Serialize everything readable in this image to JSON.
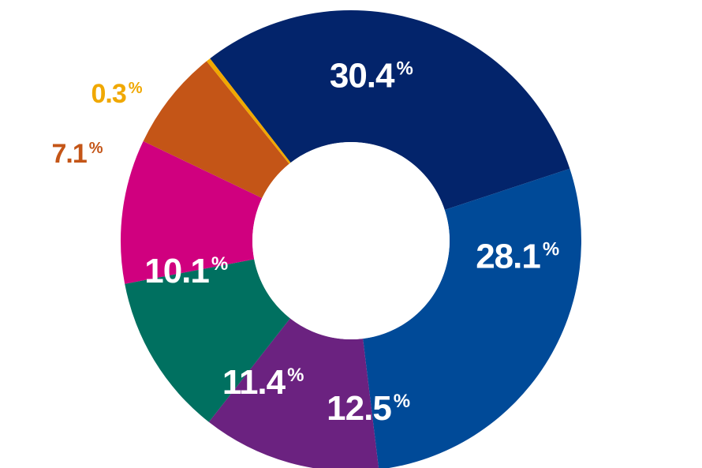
{
  "chart_data": {
    "type": "pie",
    "donut": true,
    "unit": "%",
    "slices": [
      {
        "value": 30.4,
        "label": "30.4",
        "color": "#03246b"
      },
      {
        "value": 28.1,
        "label": "28.1",
        "color": "#004a98"
      },
      {
        "value": 12.5,
        "label": "12.5",
        "color": "#6b2280"
      },
      {
        "value": 11.4,
        "label": "11.4",
        "color": "#007060"
      },
      {
        "value": 10.1,
        "label": "10.1",
        "color": "#d0007f"
      },
      {
        "value": 7.1,
        "label": "7.1",
        "color": "#c45517"
      },
      {
        "value": 0.3,
        "label": "0.3",
        "color": "#f0a800"
      }
    ],
    "label_colors": {
      "inside": "#ffffff"
    }
  }
}
